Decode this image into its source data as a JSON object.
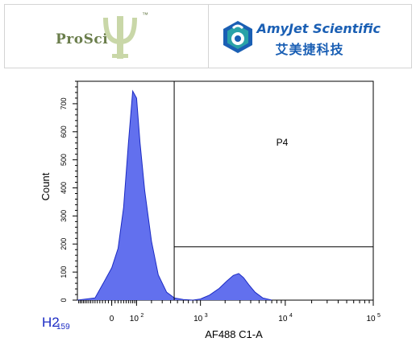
{
  "logos": {
    "prosci": {
      "name": "ProSci",
      "trademark": "™",
      "color": "#6a7d4b",
      "accent": "#c9d7a8"
    },
    "amyjet": {
      "name_en": "AmyJet Scientific",
      "name_cn": "艾美捷科技",
      "color": "#1a5fb4",
      "icon_teal": "#2aa2a8"
    }
  },
  "panel_label": {
    "main": "H2",
    "sub": "159"
  },
  "chart_data": {
    "type": "area",
    "title": "",
    "xlabel": "AF488 C1-A",
    "ylabel": "Count",
    "ylim": [
      0,
      780
    ],
    "x_axis_scale": "biexponential",
    "x_tick_labels": [
      {
        "label": "0",
        "value": 0
      },
      {
        "label": "10",
        "sup": "2",
        "value": 100
      },
      {
        "label": "10",
        "sup": "3",
        "value": 1000
      },
      {
        "label": "10",
        "sup": "4",
        "value": 10000
      },
      {
        "label": "10",
        "sup": "5",
        "value": 100000
      }
    ],
    "y_ticks": [
      0,
      100,
      200,
      300,
      400,
      500,
      600,
      700
    ],
    "fill_color": "#6270ee",
    "line_color": "#1c2bc4",
    "series": [
      {
        "x": [
          -159,
          -60,
          -30,
          0,
          20,
          40,
          60,
          80,
          100,
          120,
          150,
          200,
          260,
          350,
          450,
          600,
          800,
          1000,
          1300,
          1700,
          2100,
          2500,
          2900,
          3300,
          3800,
          4500,
          5500,
          7000
        ],
        "values": [
          0,
          8,
          55,
          115,
          185,
          330,
          560,
          745,
          720,
          560,
          390,
          210,
          90,
          28,
          8,
          2,
          0,
          4,
          18,
          42,
          68,
          88,
          95,
          80,
          55,
          28,
          8,
          0
        ]
      }
    ],
    "gate": {
      "name": "P4",
      "x_min": 450,
      "x_max": 100000,
      "y_min": 190,
      "y_max": 780
    }
  }
}
